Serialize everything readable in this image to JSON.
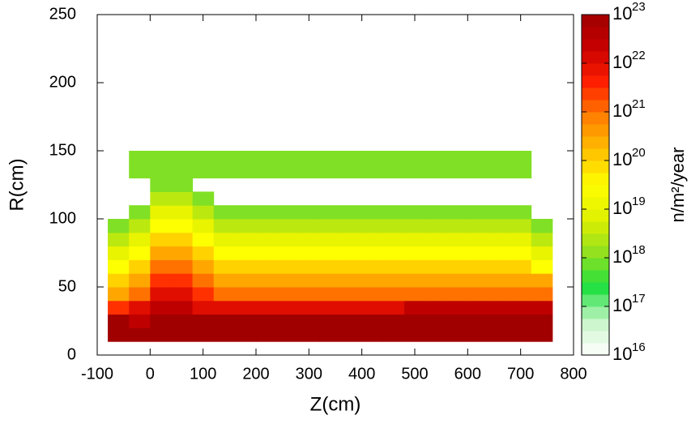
{
  "chart_data": {
    "type": "heatmap",
    "xlabel": "Z(cm)",
    "ylabel": "R(cm)",
    "zlabel": "n/m²/year",
    "xlim": [
      -100,
      800
    ],
    "xticks": [
      -100,
      0,
      100,
      200,
      300,
      400,
      500,
      600,
      700,
      800
    ],
    "ylim": [
      0,
      250
    ],
    "yticks": [
      0,
      50,
      100,
      150,
      200,
      250
    ],
    "zlim": [
      1e+16,
      1e+23
    ],
    "zlog": true,
    "zticks": [
      {
        "value": 1e+16,
        "label": "10",
        "exponent": "16"
      },
      {
        "value": 1e+17,
        "label": "10",
        "exponent": "17"
      },
      {
        "value": 1e+18,
        "label": "10",
        "exponent": "18"
      },
      {
        "value": 1e+19,
        "label": "10",
        "exponent": "19"
      },
      {
        "value": 1e+20,
        "label": "10",
        "exponent": "20"
      },
      {
        "value": 1e+21,
        "label": "10",
        "exponent": "21"
      },
      {
        "value": 1e+22,
        "label": "10",
        "exponent": "22"
      },
      {
        "value": 1e+23,
        "label": "10",
        "exponent": "23"
      }
    ],
    "palette": [
      "#ffffff",
      "#c8f5c8",
      "#20e040",
      "#90e020",
      "#e0f000",
      "#ffff00",
      "#ffc000",
      "#ff8000",
      "#ff2000",
      "#c80000",
      "#a00000"
    ],
    "xbins": [
      -80,
      -40,
      0,
      40,
      80,
      120,
      160,
      200,
      240,
      280,
      320,
      360,
      400,
      440,
      480,
      520,
      560,
      600,
      640,
      680,
      720,
      760
    ],
    "ybins": [
      10,
      20,
      30,
      40,
      50,
      60,
      70,
      80,
      90,
      100,
      110,
      120,
      130,
      140,
      150
    ],
    "z": [
      [
        1e+23,
        1e+23,
        1e+23,
        1e+23,
        1e+23,
        1e+23,
        1e+23,
        1e+23,
        1e+23,
        1e+23,
        1e+23,
        1e+23,
        1e+23,
        1e+23,
        1e+23,
        1e+23,
        1e+23,
        1e+23,
        1e+23,
        1e+23,
        1e+23
      ],
      [
        1e+23,
        3e+22,
        1e+23,
        1e+23,
        1e+23,
        1e+23,
        1e+23,
        1e+23,
        1e+23,
        1e+23,
        1e+23,
        1e+23,
        1e+23,
        1e+23,
        1e+23,
        1e+23,
        1e+23,
        1e+23,
        1e+23,
        1e+23,
        1e+23
      ],
      [
        3e+21,
        1e+22,
        3e+22,
        3e+22,
        1e+22,
        1e+22,
        1e+22,
        1e+22,
        1e+22,
        1e+22,
        1e+22,
        1e+22,
        1e+22,
        1e+22,
        3e+22,
        3e+22,
        3e+22,
        3e+22,
        3e+22,
        3e+22,
        3e+22
      ],
      [
        3e+20,
        1e+21,
        1e+22,
        1e+22,
        3e+21,
        1e+21,
        1e+21,
        1e+21,
        1e+21,
        1e+21,
        1e+21,
        1e+21,
        1e+21,
        1e+21,
        1e+21,
        1e+21,
        1e+21,
        1e+21,
        1e+21,
        1e+21,
        1e+21
      ],
      [
        1e+20,
        3e+20,
        3e+21,
        3e+21,
        1e+21,
        3e+20,
        3e+20,
        3e+20,
        3e+20,
        3e+20,
        3e+20,
        3e+20,
        3e+20,
        3e+20,
        3e+20,
        3e+20,
        3e+20,
        3e+20,
        3e+20,
        3e+20,
        3e+20
      ],
      [
        3e+19,
        1e+20,
        1e+21,
        1e+21,
        3e+20,
        1e+20,
        1e+20,
        1e+20,
        1e+20,
        1e+20,
        1e+20,
        1e+20,
        1e+20,
        1e+20,
        1e+20,
        1e+20,
        1e+20,
        1e+20,
        1e+20,
        1e+20,
        3e+19
      ],
      [
        1e+19,
        3e+19,
        3e+20,
        3e+20,
        1e+20,
        3e+19,
        3e+19,
        3e+19,
        3e+19,
        3e+19,
        3e+19,
        3e+19,
        3e+19,
        3e+19,
        3e+19,
        3e+19,
        3e+19,
        3e+19,
        3e+19,
        3e+19,
        1e+19
      ],
      [
        3e+18,
        1e+19,
        1e+20,
        1e+20,
        3e+19,
        1e+19,
        1e+19,
        1e+19,
        1e+19,
        1e+19,
        1e+19,
        1e+19,
        1e+19,
        1e+19,
        1e+19,
        1e+19,
        1e+19,
        1e+19,
        1e+19,
        1e+19,
        3e+18
      ],
      [
        1e+18,
        3e+18,
        3e+19,
        3e+19,
        1e+19,
        3e+18,
        3e+18,
        3e+18,
        3e+18,
        3e+18,
        3e+18,
        3e+18,
        3e+18,
        3e+18,
        3e+18,
        3e+18,
        3e+18,
        3e+18,
        3e+18,
        3e+18,
        1e+18
      ],
      [
        null,
        1e+18,
        1e+19,
        1e+19,
        3e+18,
        1e+18,
        1e+18,
        1e+18,
        1e+18,
        1e+18,
        1e+18,
        1e+18,
        1e+18,
        1e+18,
        1e+18,
        1e+18,
        1e+18,
        1e+18,
        1e+18,
        1e+18,
        null
      ],
      [
        null,
        null,
        3e+18,
        3e+18,
        1e+18,
        null,
        null,
        null,
        null,
        null,
        null,
        null,
        null,
        null,
        null,
        null,
        null,
        null,
        null,
        null,
        null
      ],
      [
        null,
        null,
        1e+18,
        1e+18,
        null,
        null,
        null,
        null,
        null,
        null,
        null,
        null,
        null,
        null,
        null,
        null,
        null,
        null,
        null,
        null,
        null
      ],
      [
        null,
        1e+18,
        1e+18,
        1e+18,
        1e+18,
        1e+18,
        1e+18,
        1e+18,
        1e+18,
        1e+18,
        1e+18,
        1e+18,
        1e+18,
        1e+18,
        1e+18,
        1e+18,
        1e+18,
        1e+18,
        1e+18,
        1e+18,
        null
      ],
      [
        null,
        1e+18,
        1e+18,
        1e+18,
        1e+18,
        1e+18,
        1e+18,
        1e+18,
        1e+18,
        1e+18,
        1e+18,
        1e+18,
        1e+18,
        1e+18,
        1e+18,
        1e+18,
        1e+18,
        1e+18,
        1e+18,
        1e+18,
        null
      ]
    ]
  }
}
